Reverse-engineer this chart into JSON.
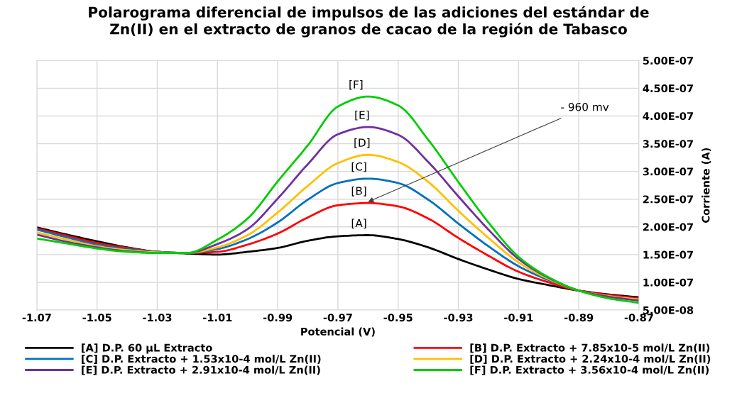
{
  "chart_data": {
    "type": "line",
    "title": "Polarograma diferencial de impulsos de las adiciones del estándar de\nZn(II) en el extracto de granos de cacao de la región de Tabasco",
    "xlabel": "Potencial (V)",
    "ylabel": "Corriente (A)",
    "x": [
      -1.07,
      -1.06,
      -1.05,
      -1.04,
      -1.03,
      -1.02,
      -1.01,
      -1.0,
      -0.99,
      -0.98,
      -0.97,
      -0.96,
      -0.95,
      -0.94,
      -0.93,
      -0.92,
      -0.91,
      -0.9,
      -0.89,
      -0.88,
      -0.87
    ],
    "series": [
      {
        "name": "[A] D.P. 60 µL Extracto",
        "color": "#000000",
        "values": [
          1.99e-07,
          1.86e-07,
          1.74e-07,
          1.63e-07,
          1.55e-07,
          1.52e-07,
          1.5e-07,
          1.55e-07,
          1.62e-07,
          1.75e-07,
          1.83e-07,
          1.85e-07,
          1.78e-07,
          1.63e-07,
          1.42e-07,
          1.23e-07,
          1.06e-07,
          9.5e-08,
          8.5e-08,
          7.8e-08,
          7.3e-08
        ]
      },
      {
        "name": "[B] D.P. Extracto + 7.85x10-5 mol/L Zn(II)",
        "color": "#ff0000",
        "values": [
          1.97e-07,
          1.84e-07,
          1.71e-07,
          1.62e-07,
          1.55e-07,
          1.53e-07,
          1.55e-07,
          1.68e-07,
          1.88e-07,
          2.17e-07,
          2.39e-07,
          2.43e-07,
          2.37e-07,
          2.15e-07,
          1.8e-07,
          1.48e-07,
          1.19e-07,
          1e-07,
          8.5e-08,
          7.7e-08,
          7.1e-08
        ]
      },
      {
        "name": "[C] D.P. Extracto + 1.53x10-4 mol/L Zn(II)",
        "color": "#0070c0",
        "values": [
          1.95e-07,
          1.81e-07,
          1.68e-07,
          1.6e-07,
          1.55e-07,
          1.53e-07,
          1.6e-07,
          1.78e-07,
          2.08e-07,
          2.49e-07,
          2.79e-07,
          2.87e-07,
          2.79e-07,
          2.49e-07,
          2.06e-07,
          1.65e-07,
          1.29e-07,
          1.04e-07,
          8.5e-08,
          null,
          null
        ]
      },
      {
        "name": "[D] D.P. Extracto + 2.24x10-4 mol/L Zn(II)",
        "color": "#ffc000",
        "values": [
          1.9e-07,
          1.77e-07,
          1.65e-07,
          1.58e-07,
          1.54e-07,
          1.53e-07,
          1.63e-07,
          1.85e-07,
          2.26e-07,
          2.74e-07,
          3.15e-07,
          3.3e-07,
          3.17e-07,
          2.81e-07,
          2.29e-07,
          1.8e-07,
          1.36e-07,
          1.06e-07,
          8.5e-08,
          7.5e-08,
          6.9e-08
        ]
      },
      {
        "name": "[E] D.P. Extracto + 2.91x10-4 mol/L Zn(II)",
        "color": "#7030a0",
        "values": [
          1.86e-07,
          1.73e-07,
          1.63e-07,
          1.56e-07,
          1.53e-07,
          1.53e-07,
          1.69e-07,
          1.96e-07,
          2.51e-07,
          3.13e-07,
          3.67e-07,
          3.8e-07,
          3.66e-07,
          3.17e-07,
          2.55e-07,
          1.95e-07,
          1.42e-07,
          1.08e-07,
          8.5e-08,
          7.4e-08,
          6.7e-08
        ]
      },
      {
        "name": "[F] D.P. Extracto + 3.56x10-4 mol/L Zn(II)",
        "color": "#00cc00",
        "values": [
          1.79e-07,
          1.7e-07,
          1.61e-07,
          1.55e-07,
          1.53e-07,
          1.53e-07,
          1.77e-07,
          2.15e-07,
          2.82e-07,
          3.47e-07,
          4.17e-07,
          4.35e-07,
          4.19e-07,
          3.57e-07,
          2.81e-07,
          2.08e-07,
          1.46e-07,
          1.09e-07,
          8.5e-08,
          7.1e-08,
          6.3e-08
        ]
      }
    ],
    "annotations": [
      {
        "text": "[A]",
        "x": -0.963,
        "y": 1.85e-07
      },
      {
        "text": "[B]",
        "x": -0.963,
        "y": 2.43e-07
      },
      {
        "text": "[C]",
        "x": -0.963,
        "y": 2.87e-07
      },
      {
        "text": "[D]",
        "x": -0.962,
        "y": 3.3e-07
      },
      {
        "text": "[E]",
        "x": -0.962,
        "y": 3.8e-07
      },
      {
        "text": "[F]",
        "x": -0.964,
        "y": 4.35e-07
      },
      {
        "text": "- 960 mv",
        "x": -0.96,
        "y": 2.45e-07
      }
    ],
    "xlim": [
      -1.07,
      -0.87
    ],
    "xticks": [
      -1.07,
      -1.05,
      -1.03,
      -1.01,
      -0.99,
      -0.97,
      -0.95,
      -0.93,
      -0.91,
      -0.89,
      -0.87
    ],
    "ylim": [
      5e-08,
      5e-07
    ],
    "yticks": [
      {
        "value": 5e-08,
        "label": "5.00E-08"
      },
      {
        "value": 1e-07,
        "label": "1.00E-07"
      },
      {
        "value": 1.5e-07,
        "label": "1.50E-07"
      },
      {
        "value": 2e-07,
        "label": "2.00E-07"
      },
      {
        "value": 2.5e-07,
        "label": "2.50E-07"
      },
      {
        "value": 3e-07,
        "label": "3.00E-07"
      },
      {
        "value": 3.5e-07,
        "label": "3.50E-07"
      },
      {
        "value": 4e-07,
        "label": "4.00E-07"
      },
      {
        "value": 4.5e-07,
        "label": "4.50E-07"
      },
      {
        "value": 5e-07,
        "label": "5.00E-07"
      }
    ],
    "grid": true,
    "legend": "bottom",
    "marker": "none",
    "line_style": "solid"
  }
}
